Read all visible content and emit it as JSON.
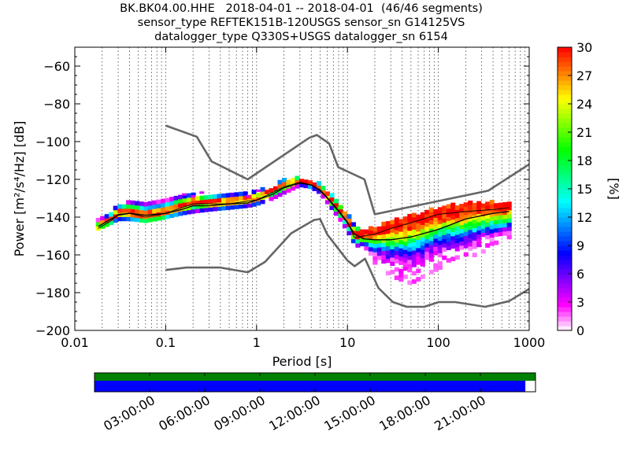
{
  "title": {
    "line1": "BK.BK04.00.HHE   2018-04-01 -- 2018-04-01  (46/46 segments)",
    "line2": "sensor_type REFTEK151B-120USGS sensor_sn G14125VS",
    "line3": "datalogger_type Q330S+USGS datalogger_sn 6154"
  },
  "chart_data": {
    "type": "heatmap",
    "xlabel": "Period [s]",
    "ylabel": "Power [m²/s⁴/Hz] [dB]",
    "xscale": "log",
    "xlim": [
      0.01,
      1000
    ],
    "ylim": [
      -200,
      -50
    ],
    "x_ticks": [
      0.01,
      0.1,
      1,
      10,
      100,
      1000
    ],
    "x_tick_labels": [
      "0.01",
      "0.1",
      "1",
      "10",
      "100",
      "1000"
    ],
    "y_ticks": [
      -200,
      -180,
      -160,
      -140,
      -120,
      -100,
      -80,
      -60
    ],
    "y_tick_labels": [
      "−200",
      "−180",
      "−160",
      "−140",
      "−120",
      "−100",
      "−80",
      "−60"
    ],
    "grid": "dotted vertical",
    "colorbar": {
      "label": "[%]",
      "range": [
        0,
        30
      ],
      "ticks": [
        0,
        3,
        6,
        9,
        12,
        15,
        18,
        21,
        24,
        27,
        30
      ],
      "colormap": [
        "#ffffff",
        "#ff00ff",
        "#8000ff",
        "#0000ff",
        "#0080ff",
        "#00ffff",
        "#00ff80",
        "#00ff00",
        "#80ff00",
        "#ffff00",
        "#ff8000",
        "#ff0000"
      ]
    },
    "noise_models": [
      {
        "kind": "upper",
        "color": "#666666",
        "x": [
          0.1,
          0.22,
          0.32,
          0.8,
          3.8,
          4.6,
          6.3,
          7.9,
          15.4,
          20,
          354,
          1000
        ],
        "y": [
          -91.5,
          -97.4,
          -110.5,
          -120,
          -98,
          -96.5,
          -101,
          -113.5,
          -120,
          -138.5,
          -126,
          -112
        ]
      },
      {
        "kind": "lower",
        "color": "#666666",
        "x": [
          0.1,
          0.17,
          0.4,
          0.8,
          1.24,
          2.4,
          4.3,
          5,
          6,
          10,
          12,
          15.6,
          21.9,
          31.6,
          45,
          70,
          101,
          154,
          328,
          600,
          1000
        ],
        "y": [
          -168,
          -166.7,
          -166.7,
          -169.2,
          -163.7,
          -148.6,
          -141.5,
          -141,
          -149.2,
          -163,
          -166,
          -162,
          -177.5,
          -185,
          -187.5,
          -187.5,
          -185,
          -185,
          -187.5,
          -184.5,
          -178
        ]
      }
    ],
    "mean_curve": {
      "color": "#000000",
      "x": [
        0.018,
        0.025,
        0.03,
        0.04,
        0.06,
        0.1,
        0.15,
        0.2,
        0.3,
        0.5,
        0.8,
        1,
        1.5,
        2,
        3,
        4,
        5,
        6,
        8,
        10,
        12,
        15,
        20,
        30,
        50,
        100,
        200,
        400,
        600
      ],
      "y": [
        -145,
        -141,
        -139,
        -138,
        -139,
        -138,
        -136,
        -134,
        -134,
        -133,
        -132.5,
        -131,
        -128,
        -124.5,
        -122,
        -123,
        -126,
        -130,
        -137,
        -143,
        -149,
        -151.5,
        -152,
        -152,
        -150.5,
        -146.5,
        -141,
        -138,
        -137
      ]
    },
    "mode_curve": {
      "color": "#000000",
      "x": [
        0.018,
        0.025,
        0.03,
        0.04,
        0.06,
        0.1,
        0.15,
        0.2,
        0.3,
        0.5,
        0.8,
        1,
        1.5,
        2,
        3,
        4,
        5,
        6,
        8,
        10,
        12,
        15,
        20,
        30,
        50,
        100,
        200,
        400,
        600
      ],
      "y": [
        -146,
        -142,
        -138.5,
        -138,
        -140,
        -138,
        -135,
        -133,
        -133,
        -133,
        -131.5,
        -131,
        -127,
        -124,
        -121.5,
        -123,
        -125.5,
        -129.5,
        -136.5,
        -142.5,
        -151,
        -150,
        -149,
        -146,
        -143,
        -138.5,
        -137,
        -136,
        -135
      ]
    },
    "band": {
      "x": [
        0.018,
        0.025,
        0.03,
        0.04,
        0.06,
        0.1,
        0.15,
        0.2,
        0.3,
        0.5,
        0.8,
        1,
        1.5,
        2,
        3,
        4,
        5,
        6,
        8,
        10,
        12,
        15,
        20,
        30,
        50,
        100,
        200,
        400,
        600
      ],
      "lo": [
        -147,
        -144,
        -142,
        -142,
        -143,
        -141,
        -139,
        -138,
        -137,
        -136,
        -135,
        -134,
        -131,
        -128,
        -124,
        -125,
        -128,
        -133,
        -141,
        -148,
        -155,
        -158,
        -165,
        -172,
        -176,
        -168,
        -163,
        -157,
        -156
      ],
      "hi": [
        -142,
        -138,
        -134,
        -133,
        -133,
        -132,
        -130,
        -129,
        -129,
        -129,
        -128,
        -127,
        -125,
        -121,
        -120,
        -121,
        -123,
        -127,
        -133,
        -139,
        -145,
        -147,
        -146,
        -143,
        -140,
        -136,
        -133,
        -133,
        -133
      ]
    },
    "outliers": [
      {
        "x": 0.16,
        "y": -128
      },
      {
        "x": 0.2,
        "y": -129
      },
      {
        "x": 0.25,
        "y": -127
      },
      {
        "x": 0.8,
        "y": -129
      },
      {
        "x": 1.05,
        "y": -126
      }
    ],
    "time_axis": {
      "tick_labels": [
        "03:00:00",
        "06:00:00",
        "09:00:00",
        "12:00:00",
        "15:00:00",
        "18:00:00",
        "21:00:00"
      ],
      "coverage_top": {
        "color": "#008000",
        "fraction": 1.0
      },
      "coverage_bottom": {
        "color": "#0000ff",
        "fraction": 0.977
      }
    }
  }
}
